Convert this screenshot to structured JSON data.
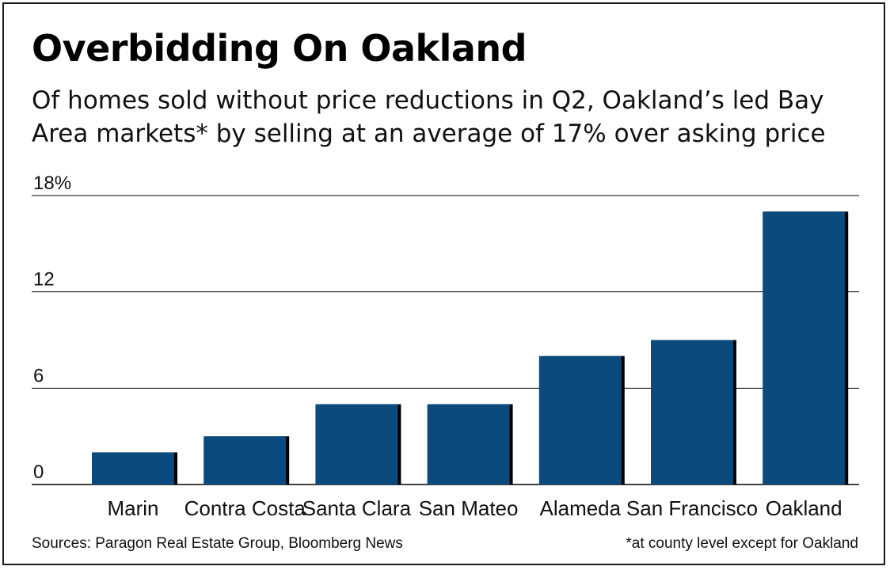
{
  "title": "Overbidding On Oakland",
  "subtitle": "Of homes sold without price reductions in Q2, Oakland’s led Bay\nArea markets* by selling at an average of 17% over asking price",
  "source": "Sources: Paragon Real Estate Group, Bloomberg News",
  "footnote": "*at county level except for Oakland",
  "colors": {
    "bar": "#0b4a7c",
    "bar_shadow": "#000000",
    "grid": "#000000"
  },
  "chart_data": {
    "type": "bar",
    "categories": [
      "Marin",
      "Contra Costa",
      "Santa Clara",
      "San Mateo",
      "Alameda",
      "San Francisco",
      "Oakland"
    ],
    "values": [
      2,
      3,
      5,
      5,
      8,
      9,
      17
    ],
    "ylim": [
      0,
      18
    ],
    "yticks": [
      0,
      6,
      12,
      18
    ],
    "ytick_labels": [
      "0",
      "6",
      "12",
      "18%"
    ],
    "grid": true
  }
}
